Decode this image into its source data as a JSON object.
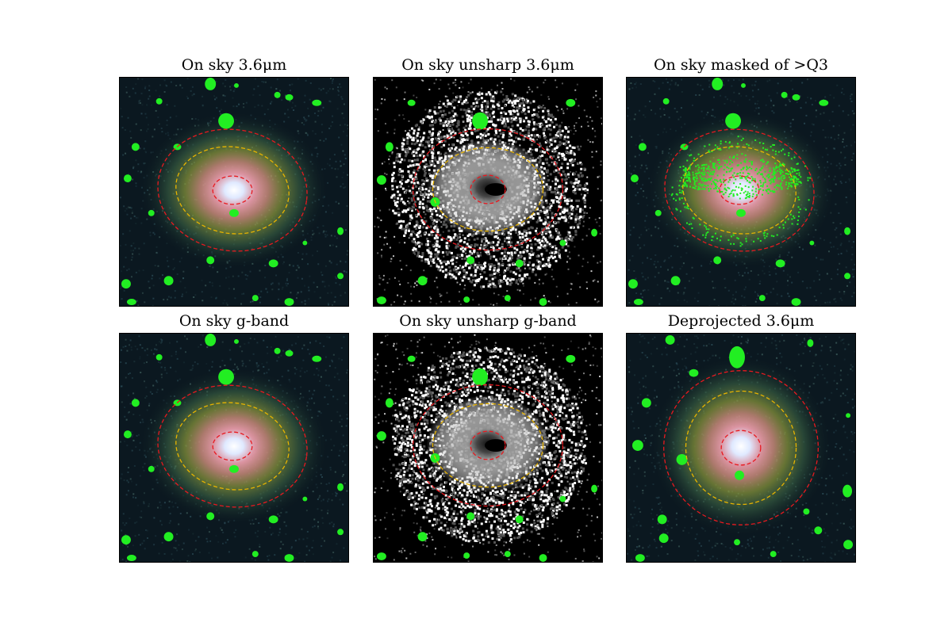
{
  "figure": {
    "panels": [
      {
        "title": "On sky 3.6μm",
        "style": "color",
        "image": "galaxy-image"
      },
      {
        "title": "On sky unsharp 3.6μm",
        "style": "unsharp",
        "image": "galaxy-image"
      },
      {
        "title": "On sky masked of >Q3",
        "style": "masked",
        "image": "galaxy-image"
      },
      {
        "title": "On sky g-band",
        "style": "color",
        "image": "galaxy-image"
      },
      {
        "title": "On sky unsharp g-band",
        "style": "unsharp",
        "image": "galaxy-image"
      },
      {
        "title": "Deprojected 3.6μm",
        "style": "deprojected",
        "image": "galaxy-image"
      }
    ],
    "colors": {
      "mask": "#22ee22",
      "inner_ellipse": "#e8191f",
      "mid_ellipse": "#e8b400",
      "outer_ellipse": "#e8191f",
      "background_dark": "#0b1820",
      "core": "#f2f6ff"
    }
  }
}
